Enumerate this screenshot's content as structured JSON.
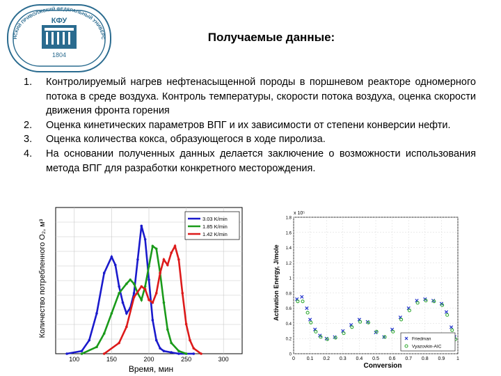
{
  "logo": {
    "ring_text": "КАЗАНСКИЙ ПРИВОЛЖСКИЙ ФЕДЕРАЛЬНЫЙ УНИВЕРСИТЕТ",
    "abbr": "КФУ",
    "year": "1804"
  },
  "title": "Получаемые данные:",
  "items": [
    {
      "num": "1.",
      "text": "Контролируемый нагрев нефтенасыщенной породы в поршневом реакторе одномерного потока в среде воздуха. Контроль температуры, скорости потока воздуха, оценка скорости движения фронта горения"
    },
    {
      "num": "2.",
      "text": "Оценка кинетических параметров ВПГ и их зависимости от степени конверсии нефти."
    },
    {
      "num": "3.",
      "text": "Оценка количества кокса, образующегося в ходе пиролиза."
    },
    {
      "num": "4.",
      "text": "На основании полученных данных делается заключение о возможности использования метода ВПГ для разработки конкретного месторождения."
    }
  ],
  "chart_data": [
    {
      "type": "line",
      "xlabel": "Время, мин",
      "ylabel": "Количество потребленного O₂, м³",
      "xlim": [
        75,
        325
      ],
      "x_ticks": [
        "100",
        "150",
        "200",
        "250",
        "300"
      ],
      "legend_position": "top-right",
      "series": [
        {
          "name": "3.03 K/min",
          "color": "#1a1acc",
          "x": [
            90,
            110,
            120,
            130,
            140,
            150,
            155,
            160,
            165,
            170,
            175,
            180,
            185,
            190,
            195,
            200,
            205,
            210,
            215,
            220,
            230,
            240,
            260
          ],
          "y": [
            0,
            0.02,
            0.1,
            0.3,
            0.6,
            0.72,
            0.66,
            0.5,
            0.38,
            0.3,
            0.34,
            0.45,
            0.7,
            0.95,
            0.85,
            0.55,
            0.25,
            0.1,
            0.04,
            0.02,
            0.01,
            0,
            0
          ]
        },
        {
          "name": "1.85 K/min",
          "color": "#1a9a1a",
          "x": [
            110,
            130,
            140,
            150,
            160,
            170,
            175,
            180,
            185,
            190,
            195,
            200,
            205,
            210,
            215,
            220,
            225,
            230,
            240,
            250
          ],
          "y": [
            0,
            0.05,
            0.15,
            0.3,
            0.45,
            0.52,
            0.55,
            0.52,
            0.45,
            0.4,
            0.5,
            0.65,
            0.8,
            0.78,
            0.6,
            0.38,
            0.18,
            0.08,
            0.02,
            0
          ]
        },
        {
          "name": "1.42 K/min",
          "color": "#dd1a1a",
          "x": [
            140,
            160,
            170,
            180,
            190,
            195,
            200,
            205,
            210,
            215,
            220,
            225,
            230,
            235,
            240,
            245,
            250,
            255,
            260,
            270
          ],
          "y": [
            0,
            0.08,
            0.2,
            0.42,
            0.5,
            0.48,
            0.4,
            0.38,
            0.45,
            0.6,
            0.7,
            0.66,
            0.75,
            0.8,
            0.7,
            0.45,
            0.22,
            0.1,
            0.04,
            0
          ]
        }
      ]
    },
    {
      "type": "scatter",
      "xlabel": "Conversion",
      "ylabel": "Activation Energy, J/mole",
      "exponent_label": "x 10⁵",
      "xlim": [
        0,
        1
      ],
      "x_ticks": [
        "0",
        "0.1",
        "0.2",
        "0.3",
        "0.4",
        "0.5",
        "0.6",
        "0.7",
        "0.8",
        "0.9",
        "1"
      ],
      "y_ticks": [
        "0",
        "0.2",
        "0.4",
        "0.6",
        "0.8",
        "1",
        "1.2",
        "1.4",
        "1.6",
        "1.8"
      ],
      "ylim": [
        0,
        1.8
      ],
      "legend_position": "bottom-right",
      "series": [
        {
          "name": "Friedman",
          "color": "#2233cc",
          "x": [
            0.02,
            0.05,
            0.08,
            0.1,
            0.13,
            0.16,
            0.2,
            0.25,
            0.3,
            0.35,
            0.4,
            0.45,
            0.5,
            0.55,
            0.6,
            0.65,
            0.7,
            0.75,
            0.8,
            0.85,
            0.9,
            0.93,
            0.96,
            0.98
          ],
          "y": [
            0.72,
            0.75,
            0.6,
            0.45,
            0.32,
            0.24,
            0.2,
            0.22,
            0.3,
            0.38,
            0.45,
            0.42,
            0.28,
            0.22,
            0.32,
            0.48,
            0.6,
            0.7,
            0.72,
            0.7,
            0.66,
            0.55,
            0.35,
            0.22
          ]
        },
        {
          "name": "Vyazovkin-AIC",
          "color": "#33aa33",
          "x": [
            0.02,
            0.05,
            0.08,
            0.1,
            0.13,
            0.16,
            0.2,
            0.25,
            0.3,
            0.35,
            0.4,
            0.45,
            0.5,
            0.55,
            0.6,
            0.65,
            0.7,
            0.75,
            0.8,
            0.85,
            0.9,
            0.93,
            0.96,
            0.98
          ],
          "y": [
            0.7,
            0.7,
            0.55,
            0.42,
            0.3,
            0.23,
            0.2,
            0.22,
            0.28,
            0.36,
            0.43,
            0.42,
            0.3,
            0.23,
            0.3,
            0.46,
            0.58,
            0.68,
            0.71,
            0.7,
            0.65,
            0.52,
            0.32,
            0.2
          ]
        }
      ]
    }
  ]
}
